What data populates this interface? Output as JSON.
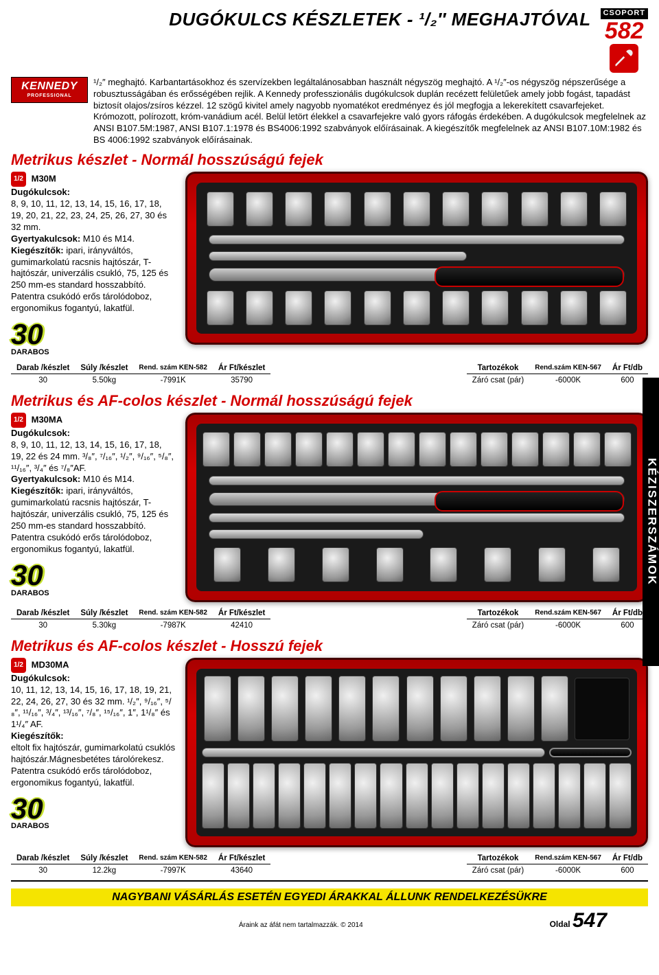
{
  "header": {
    "title": "DUGÓKULCS KÉSZLETEK - ¹/₂″ MEGHAJTÓVAL",
    "group_label": "CSOPORT",
    "group_number": "582",
    "brand_line1": "KENNEDY",
    "brand_line2": "PROFESSIONAL"
  },
  "intro": "¹/₂″ meghajtó. Karbantartásokhoz és szervízekben legáltalánosabban használt négyszög meghajtó. A ¹/₂″-os négyszög népszerűsége a robusztusságában és erősségében rejlik. A Kennedy professzionális dugókulcsok duplán recézett felületűek amely jobb fogást, tapadást biztosít olajos/zsíros kézzel. 12 szögű kivitel amely nagyobb nyomatékot eredményez és jól megfogja a lekerekített csavarfejeket. Krómozott, polírozott, króm-vanádium acél. Belül letört élekkel a csavarfejekre való gyors ráfogás érdekében. A dugókulcsok megfelelnek az ANSI B107.5M:1987, ANSI B107.1:1978 és BS4006:1992 szabványok előírásainak. A kiegészítők megfelelnek az ANSI B107.10M:1982 és BS 4006:1992 szabványok előírásainak.",
  "products": [
    {
      "subtitle": "Metrikus készlet - Normál hosszúságú fejek",
      "model": "M30M",
      "half": "1/2",
      "desc_html": "<b>Dugókulcsok:</b><br>8, 9, 10, 11, 12, 13, 14, 15, 16, 17, 18, 19, 20, 21, 22, 23, 24, 25, 26, 27, 30 és 32 mm.<br><b>Gyertyakulcsok:</b> M10 és M14.<br><b>Kiegészítők:</b> ipari, irányváltós, gumimarkolatú racsnis hajtószár, T-hajtószár, univerzális csukló, 75, 125 és 250 mm-es standard hosszabbító. Patentra csukódó erős tárolódoboz, ergonomikus fogantyú, lakatfül.",
      "badge_num": "30",
      "badge_lbl": "DARABOS",
      "table_left": {
        "headers": [
          "Darab /készlet",
          "Súly /készlet",
          "Rend. szám KEN-582",
          "Ár Ft/készlet"
        ],
        "row": [
          "30",
          "5.50kg",
          "-7991K",
          "35790"
        ]
      },
      "table_right": {
        "headers": [
          "Tartozékok",
          "Rend.szám KEN-567",
          "Ár Ft/db"
        ],
        "row": [
          "Záró csat (pár)",
          "-6000K",
          "600"
        ]
      }
    },
    {
      "subtitle": "Metrikus és AF-colos készlet - Normál hosszúságú fejek",
      "model": "M30MA",
      "half": "1/2",
      "desc_html": "<b>Dugókulcsok:</b><br>8, 9, 10, 11, 12, 13, 14, 15, 16, 17, 18, 19, 22 és 24 mm. ³/₈″, ⁷/₁₆″, ¹/₂″, ⁹/₁₆″, ⁵/₈″, ¹¹/₁₆″, ³/₄″ és ⁷/₈″AF.<br><b>Gyertyakulcsok:</b> M10 és M14.<br><b>Kiegészítők:</b> ipari, irányváltós, gumimarkolatú racsnis hajtószár, T-hajtószár, univerzális csukló, 75, 125 és 250 mm-es standard hosszabbító. Patentra csukódó erős tárolódoboz, ergonomikus fogantyú, lakatfül.",
      "badge_num": "30",
      "badge_lbl": "DARABOS",
      "table_left": {
        "headers": [
          "Darab /készlet",
          "Súly /készlet",
          "Rend. szám KEN-582",
          "Ár Ft/készlet"
        ],
        "row": [
          "30",
          "5.30kg",
          "-7987K",
          "42410"
        ]
      },
      "table_right": {
        "headers": [
          "Tartozékok",
          "Rend.szám KEN-567",
          "Ár Ft/db"
        ],
        "row": [
          "Záró csat (pár)",
          "-6000K",
          "600"
        ]
      }
    },
    {
      "subtitle": "Metrikus és AF-colos készlet - Hosszú fejek",
      "model": "MD30MA",
      "half": "1/2",
      "desc_html": "<b>Dugókulcsok:</b><br>10, 11, 12, 13, 14, 15, 16, 17, 18, 19, 21, 22, 24, 26, 27, 30 és 32 mm. ¹/₂″, ⁹/₁₆″, ⁵/₈″, ¹¹/₁₆″, ³/₄″, ¹³/₁₆″, ⁷/₈″, ¹⁵/₁₆″, 1″, 1¹/₈″ és 1¹/₄″ AF.<br><b>Kiegészítők:</b><br>eltolt fix hajtószár, gumimarkolatú csuklós hajtószár.Mágnesbetétes tárolórekesz. Patentra csukódó erős tárolódoboz, ergonomikus fogantyú, lakatfül.",
      "badge_num": "30",
      "badge_lbl": "DARABOS",
      "table_left": {
        "headers": [
          "Darab /készlet",
          "Súly /készlet",
          "Rend. szám KEN-582",
          "Ár Ft/készlet"
        ],
        "row": [
          "30",
          "12.2kg",
          "-7997K",
          "43640"
        ]
      },
      "table_right": {
        "headers": [
          "Tartozékok",
          "Rend.szám KEN-567",
          "Ár Ft/db"
        ],
        "row": [
          "Záró csat (pár)",
          "-6000K",
          "600"
        ]
      }
    }
  ],
  "side_tab": "KÉZISZERSZÁMOK",
  "footer": {
    "yellow": "NAGYBANI VÁSÁRLÁS ESETÉN EGYEDI ÁRAKKAL ÁLLUNK RENDELKEZÉSÜKRE",
    "small": "Áraink az áfát nem tartalmazzák. © 2014",
    "page_label": "Oldal",
    "page_number": "547"
  },
  "colors": {
    "red": "#d30000",
    "yellow": "#f5e400",
    "lime": "#c6e030",
    "black": "#000000"
  }
}
